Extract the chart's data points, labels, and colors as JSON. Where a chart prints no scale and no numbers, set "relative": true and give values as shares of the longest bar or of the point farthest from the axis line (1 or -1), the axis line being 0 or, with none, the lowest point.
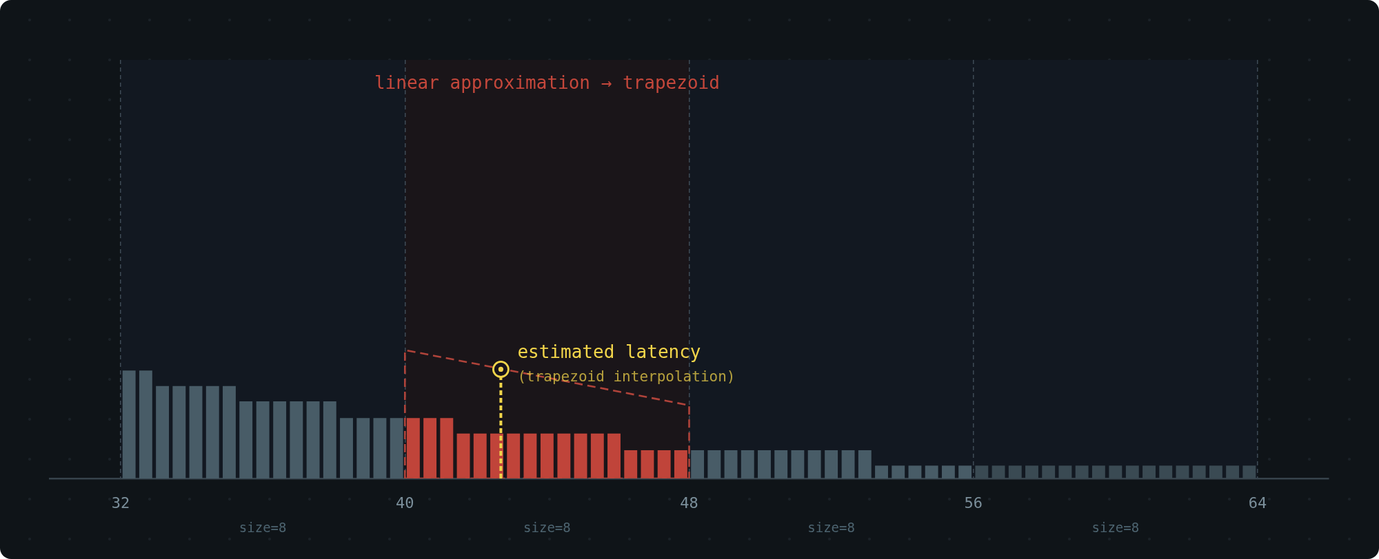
{
  "chart_data": {
    "type": "histogram",
    "bins": [
      32,
      32.47,
      32.94,
      33.41,
      33.88,
      34.35,
      34.82,
      35.29,
      35.76,
      36.24,
      36.71,
      37.18,
      37.65,
      38.12,
      38.59,
      39.06,
      39.53,
      40,
      40.47,
      40.94,
      41.41,
      41.88,
      42.35,
      42.82,
      43.29,
      43.76,
      44.24,
      44.71,
      45.18,
      45.65,
      46.12,
      46.59,
      47.06,
      47.53,
      48,
      48.47,
      48.94,
      49.41,
      49.88,
      50.35,
      50.82,
      51.29,
      51.76,
      52.24,
      52.71,
      53.18,
      53.65,
      54.12,
      54.59,
      55.06,
      55.53,
      56,
      56.47,
      56.94,
      57.41,
      57.88,
      58.35,
      58.82,
      59.29,
      59.76,
      60.24,
      60.71,
      61.18,
      61.65,
      62.12,
      62.59,
      63.06,
      63.53,
      64
    ],
    "xlim": [
      30,
      66
    ],
    "xticks": [
      32,
      40,
      48,
      56,
      64
    ],
    "grid": "x",
    "relative": true,
    "bands": [
      {
        "axis": "x",
        "from": 32,
        "to": 64,
        "color": "#121821"
      },
      {
        "axis": "x",
        "from": 40,
        "to": 48,
        "color": "#1a1519",
        "label": "linear approximation → trapezoid"
      }
    ],
    "series": [
      {
        "type": "scatter",
        "x": [
          42.7
        ],
        "values": [
          0.85
        ],
        "color": "#f2d54a",
        "marker": "circle"
      },
      {
        "type": "line",
        "x": [
          42.7,
          42.7
        ],
        "values": [
          0,
          0.85
        ],
        "color": "#f2d54a",
        "line_style": "dotted"
      },
      {
        "type": "line",
        "x": [
          40,
          40,
          48,
          48
        ],
        "values": [
          0,
          1,
          0.57,
          0
        ],
        "color": "#b0433a",
        "line_style": "dashed"
      },
      {
        "type": "line",
        "x": [
          40,
          48
        ],
        "values": [
          0,
          0
        ],
        "color": "#b0433a",
        "line_style": "dashed"
      },
      {
        "colors": [
          "#485c67",
          "#485c67",
          "#485c67",
          "#485c67",
          "#485c67",
          "#485c67",
          "#485c67",
          "#485c67",
          "#485c67",
          "#485c67",
          "#485c67",
          "#485c67",
          "#485c67",
          "#485c67",
          "#485c67",
          "#485c67",
          "#485c67",
          "#c0443a",
          "#c0443a",
          "#c0443a",
          "#c0443a",
          "#c0443a",
          "#c0443a",
          "#c0443a",
          "#c0443a",
          "#c0443a",
          "#c0443a",
          "#c0443a",
          "#c0443a",
          "#c0443a",
          "#c0443a",
          "#c0443a",
          "#c0443a",
          "#c0443a",
          "#485c67",
          "#485c67",
          "#485c67",
          "#485c67",
          "#485c67",
          "#485c67",
          "#485c67",
          "#485c67",
          "#485c67",
          "#485c67",
          "#485c67",
          "#485c67",
          "#485c67",
          "#485c67",
          "#485c67",
          "#485c67",
          "#485c67",
          "#3a4a53",
          "#3a4a53",
          "#3a4a53",
          "#3a4a53",
          "#3a4a53",
          "#3a4a53",
          "#3a4a53",
          "#3a4a53",
          "#3a4a53",
          "#3a4a53",
          "#3a4a53",
          "#3a4a53",
          "#3a4a53",
          "#3a4a53",
          "#3a4a53",
          "#3a4a53",
          "#3a4a53"
        ],
        "values": [
          0.84,
          0.84,
          0.72,
          0.72,
          0.72,
          0.72,
          0.72,
          0.6,
          0.6,
          0.6,
          0.6,
          0.6,
          0.6,
          0.47,
          0.47,
          0.47,
          0.47,
          0.47,
          0.47,
          0.47,
          0.35,
          0.35,
          0.35,
          0.35,
          0.35,
          0.35,
          0.35,
          0.35,
          0.35,
          0.35,
          0.22,
          0.22,
          0.22,
          0.22,
          0.22,
          0.22,
          0.22,
          0.22,
          0.22,
          0.22,
          0.22,
          0.22,
          0.22,
          0.22,
          0.22,
          0.1,
          0.1,
          0.1,
          0.1,
          0.1,
          0.1,
          0.1,
          0.1,
          0.1,
          0.1,
          0.1,
          0.1,
          0.1,
          0.1,
          0.1,
          0.1,
          0.1,
          0.1,
          0.1,
          0.1,
          0.1,
          0.1,
          0.1
        ]
      }
    ],
    "annotations": [
      {
        "text": "estimated latency",
        "x": 42.7,
        "y": 0.85
      },
      {
        "text": "(trapezoid interpolation)",
        "x": 42.7,
        "y": 0.85
      },
      "size=8",
      "size=8",
      "size=8",
      "size=8"
    ]
  }
}
